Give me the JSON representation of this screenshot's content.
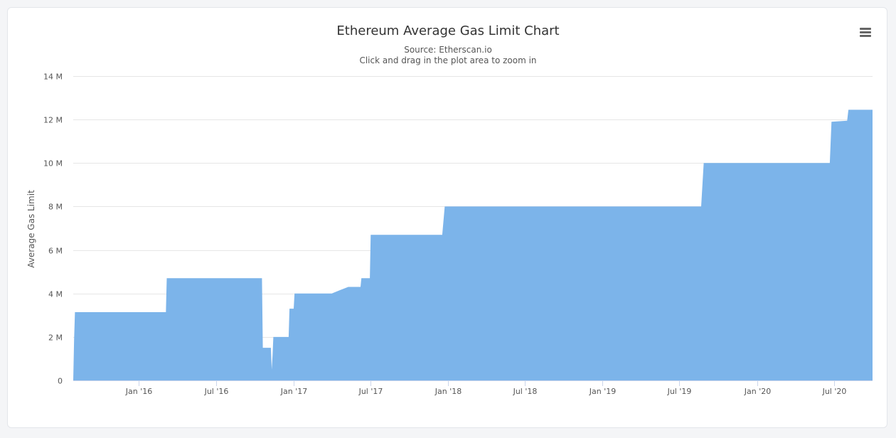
{
  "chart_data": {
    "type": "area",
    "title": "Ethereum Average Gas Limit Chart",
    "subtitle": "Source: Etherscan.io",
    "subtitle2": "Click and drag in the plot area to zoom in",
    "xlabel": "",
    "ylabel": "Average Gas Limit",
    "ylim": [
      0,
      14000000
    ],
    "y_ticks": [
      {
        "value": 0,
        "label": "0"
      },
      {
        "value": 2000000,
        "label": "2 M"
      },
      {
        "value": 4000000,
        "label": "4 M"
      },
      {
        "value": 6000000,
        "label": "6 M"
      },
      {
        "value": 8000000,
        "label": "8 M"
      },
      {
        "value": 10000000,
        "label": "10 M"
      },
      {
        "value": 12000000,
        "label": "12 M"
      },
      {
        "value": 14000000,
        "label": "14 M"
      }
    ],
    "xlim": [
      "2015-07-30",
      "2020-09-30"
    ],
    "x_ticks": [
      {
        "date": "2016-01-01",
        "label": "Jan '16"
      },
      {
        "date": "2016-07-01",
        "label": "Jul '16"
      },
      {
        "date": "2017-01-01",
        "label": "Jan '17"
      },
      {
        "date": "2017-07-01",
        "label": "Jul '17"
      },
      {
        "date": "2018-01-01",
        "label": "Jan '18"
      },
      {
        "date": "2018-07-01",
        "label": "Jul '18"
      },
      {
        "date": "2019-01-01",
        "label": "Jan '19"
      },
      {
        "date": "2019-07-01",
        "label": "Jul '19"
      },
      {
        "date": "2020-01-01",
        "label": "Jan '20"
      },
      {
        "date": "2020-07-01",
        "label": "Jul '20"
      }
    ],
    "grid": true,
    "legend": "none",
    "color": "#7cb4ea",
    "series": [
      {
        "points": [
          [
            "2015-07-30",
            0
          ],
          [
            "2015-08-01",
            1900000
          ],
          [
            "2015-08-03",
            3140000
          ],
          [
            "2016-03-05",
            3140000
          ],
          [
            "2016-03-07",
            4700000
          ],
          [
            "2016-10-18",
            4700000
          ],
          [
            "2016-10-20",
            1500000
          ],
          [
            "2016-11-08",
            1500000
          ],
          [
            "2016-11-10",
            500000
          ],
          [
            "2016-11-12",
            1150000
          ],
          [
            "2016-11-14",
            2000000
          ],
          [
            "2016-12-20",
            2000000
          ],
          [
            "2016-12-22",
            3300000
          ],
          [
            "2017-01-01",
            3300000
          ],
          [
            "2017-01-03",
            4000000
          ],
          [
            "2017-04-01",
            4000000
          ],
          [
            "2017-04-20",
            4150000
          ],
          [
            "2017-05-10",
            4300000
          ],
          [
            "2017-06-08",
            4300000
          ],
          [
            "2017-06-10",
            4700000
          ],
          [
            "2017-06-30",
            4700000
          ],
          [
            "2017-07-02",
            6700000
          ],
          [
            "2017-12-18",
            6700000
          ],
          [
            "2017-12-24",
            8000000
          ],
          [
            "2019-08-22",
            8000000
          ],
          [
            "2019-08-28",
            10000000
          ],
          [
            "2020-06-21",
            10000000
          ],
          [
            "2020-06-25",
            11900000
          ],
          [
            "2020-08-01",
            11950000
          ],
          [
            "2020-08-04",
            12450000
          ],
          [
            "2020-09-30",
            12450000
          ],
          [
            "2020-09-30",
            0
          ]
        ]
      }
    ]
  },
  "ui": {
    "menu_icon": "hamburger-menu-icon",
    "grid_color": "#e6e6e6",
    "axis_color": "#ccd6eb"
  }
}
